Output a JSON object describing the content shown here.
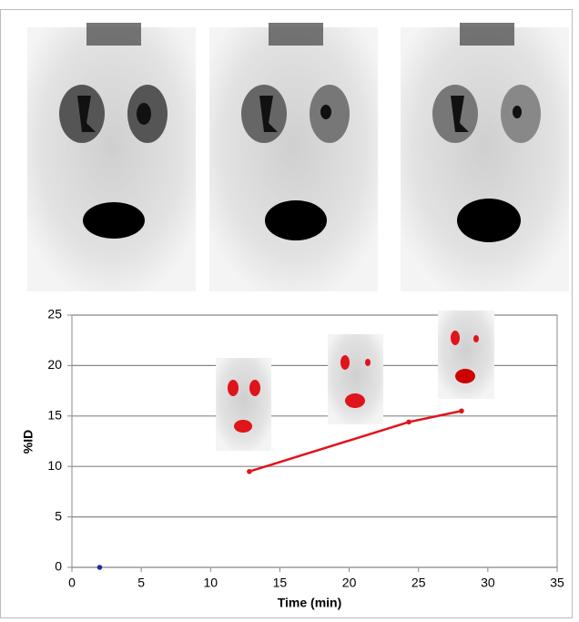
{
  "chart_data": {
    "type": "scatter",
    "x_label": "Time (min)",
    "y_label": "%ID",
    "xlim": [
      0,
      35
    ],
    "xticks": [
      0,
      5,
      10,
      15,
      20,
      25,
      30,
      35
    ],
    "ylim": [
      0,
      25
    ],
    "yticks": [
      0,
      5,
      10,
      15,
      20,
      25
    ],
    "grid": true,
    "series": [
      {
        "color": "#e0141b",
        "line": true,
        "x": [
          12.8,
          24.3,
          28.1
        ],
        "values": [
          9.5,
          14.4,
          15.5
        ]
      },
      {
        "color": "#1f2a9c",
        "line": false,
        "x": [
          2
        ],
        "values": [
          0
        ]
      }
    ]
  }
}
